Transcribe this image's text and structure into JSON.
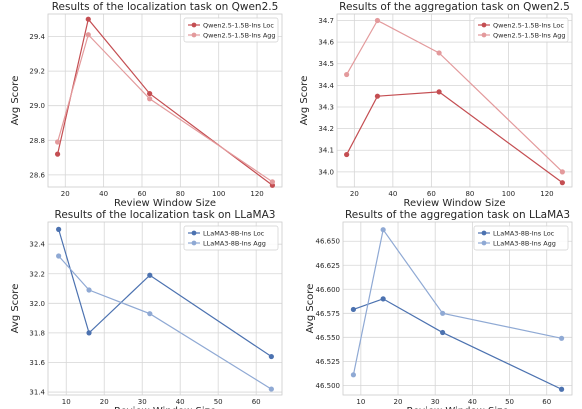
{
  "chart_data": [
    {
      "type": "line",
      "title": "Results of the localization task on Qwen2.5",
      "xlabel": "Review Window Size",
      "ylabel": "Avg Score",
      "xlim": [
        11,
        133
      ],
      "ylim": [
        28.53,
        29.53
      ],
      "xticks": [
        20,
        40,
        60,
        80,
        100,
        120
      ],
      "yticks": [
        28.6,
        28.8,
        29.0,
        29.2,
        29.4
      ],
      "ytick_decimals": 1,
      "grid": true,
      "legend": "top-right",
      "series": [
        {
          "name": "Qwen2.5-1.5B-Ins Loc",
          "color": "#c44e52",
          "x": [
            16,
            32,
            64,
            128
          ],
          "y": [
            28.72,
            29.5,
            29.07,
            28.54
          ]
        },
        {
          "name": "Qwen2.5-1.5B-Ins Agg",
          "color": "#e39a9c",
          "x": [
            16,
            32,
            64,
            128
          ],
          "y": [
            28.79,
            29.41,
            29.04,
            28.56
          ]
        }
      ]
    },
    {
      "type": "line",
      "title": "Results of the aggregation task on Qwen2.5",
      "xlabel": "Review Window Size",
      "ylabel": "Avg Score",
      "xlim": [
        11,
        133
      ],
      "ylim": [
        33.93,
        34.73
      ],
      "xticks": [
        20,
        40,
        60,
        80,
        100,
        120
      ],
      "yticks": [
        34.0,
        34.1,
        34.2,
        34.3,
        34.4,
        34.5,
        34.6,
        34.7
      ],
      "ytick_decimals": 1,
      "grid": true,
      "legend": "top-right",
      "series": [
        {
          "name": "Qwen2.5-1.5B-Ins Loc",
          "color": "#c44e52",
          "x": [
            16,
            32,
            64,
            128
          ],
          "y": [
            34.08,
            34.35,
            34.37,
            33.95
          ]
        },
        {
          "name": "Qwen2.5-1.5B-Ins Agg",
          "color": "#e39a9c",
          "x": [
            16,
            32,
            64,
            128
          ],
          "y": [
            34.45,
            34.7,
            34.55,
            34.0
          ]
        }
      ]
    },
    {
      "type": "line",
      "title": "Results of the localization task on LLaMA3",
      "xlabel": "Review Window Size",
      "ylabel": "Avg Score",
      "xlim": [
        5.2,
        66.8
      ],
      "ylim": [
        31.38,
        32.55
      ],
      "xticks": [
        10,
        20,
        30,
        40,
        50,
        60
      ],
      "yticks": [
        31.4,
        31.6,
        31.8,
        32.0,
        32.2,
        32.4
      ],
      "ytick_decimals": 1,
      "grid": true,
      "legend": "top-right",
      "series": [
        {
          "name": "LLaMA3-8B-Ins Loc",
          "color": "#4c72b0",
          "x": [
            8,
            16,
            32,
            64
          ],
          "y": [
            32.5,
            31.8,
            32.19,
            31.64
          ]
        },
        {
          "name": "LLaMA3-8B-Ins Agg",
          "color": "#8fa9d4",
          "x": [
            8,
            16,
            32,
            64
          ],
          "y": [
            32.32,
            32.09,
            31.93,
            31.42
          ]
        }
      ]
    },
    {
      "type": "line",
      "title": "Results of the aggregation task on LLaMA3",
      "xlabel": "Review Window Size",
      "ylabel": "Avg Score",
      "xlim": [
        5.2,
        66.8
      ],
      "ylim": [
        46.49,
        46.67
      ],
      "xticks": [
        10,
        20,
        30,
        40,
        50,
        60
      ],
      "yticks": [
        46.5,
        46.525,
        46.55,
        46.575,
        46.6,
        46.625,
        46.65
      ],
      "ytick_decimals": 3,
      "grid": true,
      "legend": "top-right",
      "series": [
        {
          "name": "LLaMA3-8B-Ins Loc",
          "color": "#4c72b0",
          "x": [
            8,
            16,
            32,
            64
          ],
          "y": [
            46.579,
            46.59,
            46.555,
            46.496
          ]
        },
        {
          "name": "LLaMA3-8B-Ins Agg",
          "color": "#8fa9d4",
          "x": [
            8,
            16,
            32,
            64
          ],
          "y": [
            46.511,
            46.662,
            46.575,
            46.549
          ]
        }
      ]
    }
  ]
}
